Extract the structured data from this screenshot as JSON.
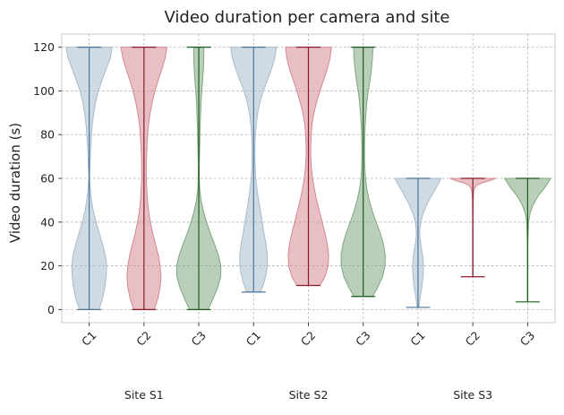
{
  "chart_data": {
    "type": "violin",
    "title": "Video duration per camera and site",
    "ylabel": "Video duration (s)",
    "xlabel": "",
    "ylim": [
      -6,
      126
    ],
    "yticks": [
      0,
      20,
      40,
      60,
      80,
      100,
      120
    ],
    "grid": true,
    "categories": [
      "C1",
      "C2",
      "C3",
      "C1",
      "C2",
      "C3",
      "C1",
      "C2",
      "C3"
    ],
    "groups": [
      {
        "label": "Site S1",
        "cameras": [
          "C1",
          "C2",
          "C3"
        ]
      },
      {
        "label": "Site S2",
        "cameras": [
          "C1",
          "C2",
          "C3"
        ]
      },
      {
        "label": "Site S3",
        "cameras": [
          "C1",
          "C2",
          "C3"
        ]
      }
    ],
    "camera_colors": {
      "C1": "#4f7699",
      "C2": "#8b1a2a",
      "C3": "#1e5a1e"
    },
    "camera_fill_colors": {
      "C1": "#a7bccc",
      "C2": "#d48a93",
      "C3": "#7fa77f"
    },
    "violins": [
      {
        "site": "S1",
        "camera": "C1",
        "min": 0,
        "max": 120,
        "density": [
          [
            0,
            0.42
          ],
          [
            5,
            0.58
          ],
          [
            10,
            0.68
          ],
          [
            15,
            0.74
          ],
          [
            20,
            0.76
          ],
          [
            25,
            0.7
          ],
          [
            30,
            0.58
          ],
          [
            35,
            0.44
          ],
          [
            40,
            0.3
          ],
          [
            45,
            0.18
          ],
          [
            50,
            0.1
          ],
          [
            55,
            0.05
          ],
          [
            60,
            0.02
          ],
          [
            65,
            0.03
          ],
          [
            70,
            0.05
          ],
          [
            75,
            0.07
          ],
          [
            80,
            0.1
          ],
          [
            85,
            0.14
          ],
          [
            90,
            0.2
          ],
          [
            95,
            0.28
          ],
          [
            100,
            0.4
          ],
          [
            105,
            0.56
          ],
          [
            110,
            0.74
          ],
          [
            115,
            0.92
          ],
          [
            120,
            1.0
          ]
        ]
      },
      {
        "site": "S1",
        "camera": "C2",
        "min": 0,
        "max": 120,
        "density": [
          [
            0,
            0.45
          ],
          [
            5,
            0.6
          ],
          [
            10,
            0.7
          ],
          [
            15,
            0.74
          ],
          [
            20,
            0.7
          ],
          [
            25,
            0.62
          ],
          [
            30,
            0.5
          ],
          [
            35,
            0.38
          ],
          [
            40,
            0.28
          ],
          [
            45,
            0.2
          ],
          [
            50,
            0.15
          ],
          [
            55,
            0.12
          ],
          [
            60,
            0.1
          ],
          [
            65,
            0.1
          ],
          [
            70,
            0.11
          ],
          [
            75,
            0.13
          ],
          [
            80,
            0.16
          ],
          [
            85,
            0.2
          ],
          [
            90,
            0.27
          ],
          [
            95,
            0.36
          ],
          [
            100,
            0.48
          ],
          [
            105,
            0.62
          ],
          [
            110,
            0.78
          ],
          [
            115,
            0.92
          ],
          [
            120,
            1.0
          ]
        ]
      },
      {
        "site": "S1",
        "camera": "C3",
        "min": 0,
        "max": 120,
        "density": [
          [
            0,
            0.4
          ],
          [
            5,
            0.62
          ],
          [
            10,
            0.82
          ],
          [
            15,
            0.95
          ],
          [
            20,
            0.96
          ],
          [
            25,
            0.85
          ],
          [
            30,
            0.68
          ],
          [
            35,
            0.5
          ],
          [
            40,
            0.34
          ],
          [
            45,
            0.2
          ],
          [
            50,
            0.1
          ],
          [
            55,
            0.04
          ],
          [
            60,
            0.02
          ],
          [
            65,
            0.02
          ],
          [
            70,
            0.03
          ],
          [
            75,
            0.04
          ],
          [
            80,
            0.05
          ],
          [
            85,
            0.06
          ],
          [
            90,
            0.08
          ],
          [
            95,
            0.1
          ],
          [
            100,
            0.13
          ],
          [
            105,
            0.17
          ],
          [
            110,
            0.2
          ],
          [
            115,
            0.22
          ],
          [
            120,
            0.22
          ]
        ]
      },
      {
        "site": "S2",
        "camera": "C1",
        "min": 8,
        "max": 120,
        "density": [
          [
            8,
            0.3
          ],
          [
            12,
            0.44
          ],
          [
            16,
            0.54
          ],
          [
            20,
            0.6
          ],
          [
            25,
            0.6
          ],
          [
            30,
            0.54
          ],
          [
            35,
            0.45
          ],
          [
            40,
            0.38
          ],
          [
            45,
            0.3
          ],
          [
            50,
            0.22
          ],
          [
            55,
            0.15
          ],
          [
            60,
            0.1
          ],
          [
            65,
            0.07
          ],
          [
            70,
            0.06
          ],
          [
            75,
            0.06
          ],
          [
            80,
            0.08
          ],
          [
            85,
            0.12
          ],
          [
            90,
            0.18
          ],
          [
            95,
            0.28
          ],
          [
            100,
            0.42
          ],
          [
            105,
            0.6
          ],
          [
            110,
            0.78
          ],
          [
            115,
            0.92
          ],
          [
            120,
            1.0
          ]
        ]
      },
      {
        "site": "S2",
        "camera": "C2",
        "min": 11,
        "max": 120,
        "density": [
          [
            11,
            0.5
          ],
          [
            15,
            0.72
          ],
          [
            20,
            0.86
          ],
          [
            25,
            0.88
          ],
          [
            30,
            0.82
          ],
          [
            35,
            0.72
          ],
          [
            40,
            0.6
          ],
          [
            45,
            0.48
          ],
          [
            50,
            0.36
          ],
          [
            55,
            0.26
          ],
          [
            60,
            0.18
          ],
          [
            65,
            0.13
          ],
          [
            70,
            0.1
          ],
          [
            75,
            0.1
          ],
          [
            80,
            0.12
          ],
          [
            85,
            0.16
          ],
          [
            90,
            0.24
          ],
          [
            95,
            0.36
          ],
          [
            100,
            0.5
          ],
          [
            105,
            0.66
          ],
          [
            110,
            0.82
          ],
          [
            115,
            0.94
          ],
          [
            120,
            1.0
          ]
        ]
      },
      {
        "site": "S2",
        "camera": "C3",
        "min": 6,
        "max": 120,
        "density": [
          [
            6,
            0.4
          ],
          [
            10,
            0.62
          ],
          [
            15,
            0.84
          ],
          [
            20,
            0.95
          ],
          [
            25,
            0.96
          ],
          [
            30,
            0.88
          ],
          [
            35,
            0.74
          ],
          [
            40,
            0.56
          ],
          [
            45,
            0.4
          ],
          [
            50,
            0.26
          ],
          [
            55,
            0.16
          ],
          [
            60,
            0.1
          ],
          [
            65,
            0.07
          ],
          [
            70,
            0.06
          ],
          [
            75,
            0.06
          ],
          [
            80,
            0.07
          ],
          [
            85,
            0.09
          ],
          [
            90,
            0.12
          ],
          [
            95,
            0.16
          ],
          [
            100,
            0.22
          ],
          [
            105,
            0.3
          ],
          [
            110,
            0.36
          ],
          [
            115,
            0.4
          ],
          [
            120,
            0.42
          ]
        ]
      },
      {
        "site": "S3",
        "camera": "C1",
        "min": 1,
        "max": 60,
        "density": [
          [
            1,
            0.04
          ],
          [
            3,
            0.06
          ],
          [
            6,
            0.1
          ],
          [
            10,
            0.16
          ],
          [
            15,
            0.22
          ],
          [
            20,
            0.24
          ],
          [
            25,
            0.2
          ],
          [
            30,
            0.12
          ],
          [
            33,
            0.08
          ],
          [
            36,
            0.07
          ],
          [
            40,
            0.12
          ],
          [
            44,
            0.22
          ],
          [
            48,
            0.38
          ],
          [
            52,
            0.58
          ],
          [
            56,
            0.8
          ],
          [
            60,
            1.0
          ]
        ]
      },
      {
        "site": "S3",
        "camera": "C2",
        "min": 15,
        "max": 60,
        "density": [
          [
            15,
            0.01
          ],
          [
            20,
            0.01
          ],
          [
            30,
            0.01
          ],
          [
            40,
            0.01
          ],
          [
            50,
            0.02
          ],
          [
            54,
            0.04
          ],
          [
            56,
            0.1
          ],
          [
            57,
            0.2
          ],
          [
            58,
            0.42
          ],
          [
            59,
            0.75
          ],
          [
            60,
            1.0
          ]
        ]
      },
      {
        "site": "S3",
        "camera": "C3",
        "min": 3.5,
        "max": 60,
        "density": [
          [
            3.5,
            0.01
          ],
          [
            10,
            0.01
          ],
          [
            20,
            0.01
          ],
          [
            30,
            0.01
          ],
          [
            40,
            0.04
          ],
          [
            44,
            0.1
          ],
          [
            48,
            0.24
          ],
          [
            52,
            0.46
          ],
          [
            56,
            0.76
          ],
          [
            60,
            1.0
          ]
        ]
      }
    ]
  }
}
